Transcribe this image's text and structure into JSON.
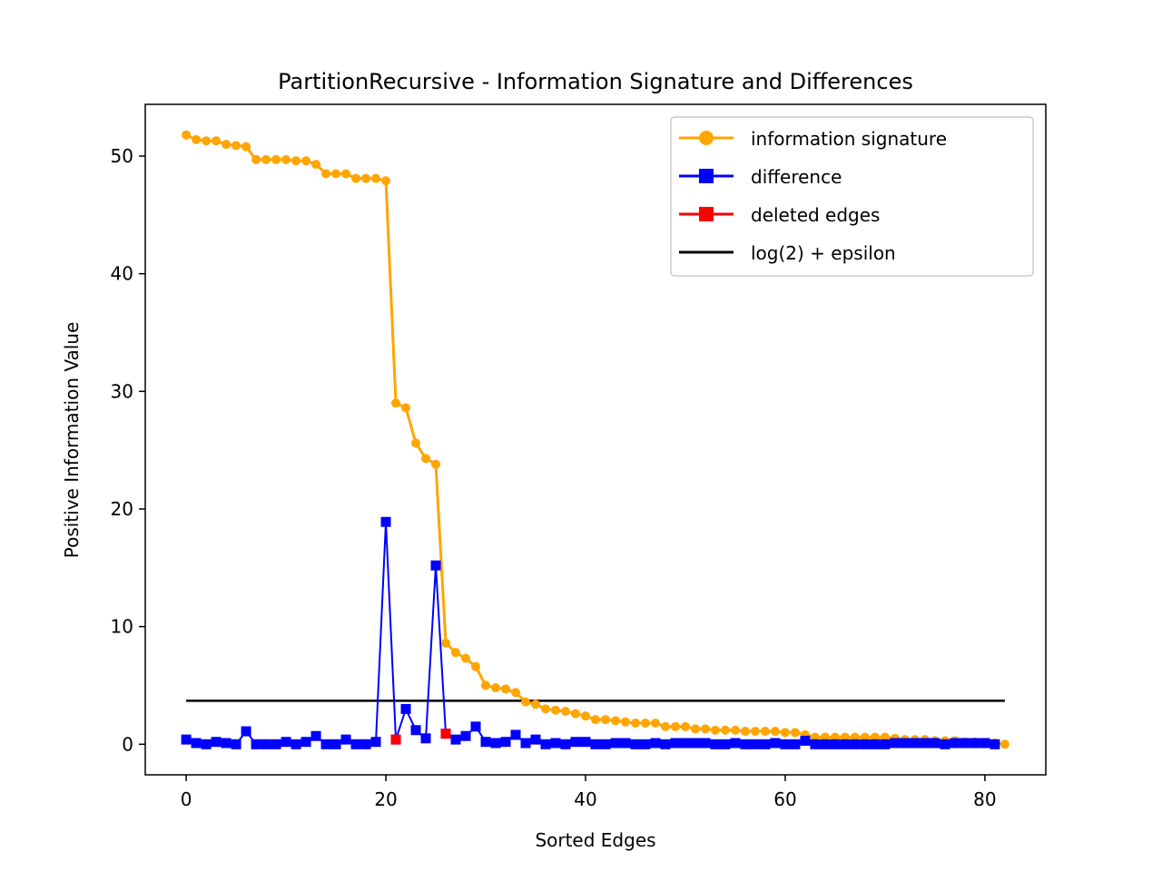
{
  "chart_data": {
    "type": "line",
    "title": "PartitionRecursive - Information Signature and Differences",
    "xlabel": "Sorted Edges",
    "ylabel": "Positive Information Value",
    "xlim": [
      -4.1,
      86.1
    ],
    "ylim": [
      -2.6,
      54.4
    ],
    "xticks": [
      0,
      20,
      40,
      60,
      80
    ],
    "yticks": [
      0,
      10,
      20,
      30,
      40,
      50
    ],
    "legend_position": "top-right",
    "grid": false,
    "colors": {
      "signature": "#FFA500",
      "difference": "#0000FF",
      "deleted": "#FF0000",
      "threshold": "#000000"
    },
    "series": [
      {
        "name": "information signature",
        "x_start": 0,
        "values": [
          51.8,
          51.4,
          51.3,
          51.3,
          51.0,
          50.9,
          50.8,
          49.7,
          49.7,
          49.7,
          49.7,
          49.6,
          49.6,
          49.3,
          48.5,
          48.5,
          48.5,
          48.1,
          48.1,
          48.1,
          47.9,
          29.0,
          28.6,
          25.6,
          24.3,
          23.8,
          8.6,
          7.8,
          7.3,
          6.6,
          5.0,
          4.8,
          4.7,
          4.4,
          3.6,
          3.4,
          3.0,
          2.9,
          2.8,
          2.6,
          2.4,
          2.1,
          2.1,
          2.0,
          1.9,
          1.8,
          1.8,
          1.8,
          1.5,
          1.5,
          1.5,
          1.3,
          1.3,
          1.2,
          1.2,
          1.2,
          1.1,
          1.1,
          1.1,
          1.1,
          1.0,
          1.0,
          0.8,
          0.6,
          0.6,
          0.6,
          0.6,
          0.6,
          0.6,
          0.6,
          0.6,
          0.5,
          0.4,
          0.4,
          0.4,
          0.3,
          0.3,
          0.3,
          0.2,
          0.2,
          0.1,
          0.1,
          0.0
        ]
      },
      {
        "name": "difference",
        "x_start": 0,
        "values": [
          0.4,
          0.1,
          0.0,
          0.2,
          0.1,
          0.0,
          1.1,
          0.0,
          0.0,
          0.0,
          0.2,
          0.0,
          0.2,
          0.7,
          0.0,
          0.0,
          0.4,
          0.0,
          0.0,
          0.2,
          18.9,
          0.4,
          3.0,
          1.2,
          0.5,
          15.2,
          0.9,
          0.4,
          0.7,
          1.5,
          0.2,
          0.1,
          0.2,
          0.8,
          0.1,
          0.4,
          0.0,
          0.1,
          0.0,
          0.2,
          0.2,
          0.0,
          0.0,
          0.1,
          0.1,
          0.0,
          0.0,
          0.1,
          0.0,
          0.1,
          0.1,
          0.1,
          0.1,
          0.0,
          0.0,
          0.1,
          0.0,
          0.0,
          0.0,
          0.1,
          0.0,
          0.0,
          0.3,
          0.0,
          0.0,
          0.0,
          0.0,
          0.0,
          0.0,
          0.0,
          0.0,
          0.1,
          0.1,
          0.1,
          0.1,
          0.1,
          0.0,
          0.1,
          0.1,
          0.1,
          0.1,
          0.0
        ]
      },
      {
        "name": "deleted edges",
        "x": [
          21,
          26
        ],
        "values": [
          0.4,
          0.9
        ]
      },
      {
        "name": "log(2) + epsilon",
        "x": [
          0,
          82
        ],
        "values": [
          3.7,
          3.7
        ]
      }
    ]
  }
}
